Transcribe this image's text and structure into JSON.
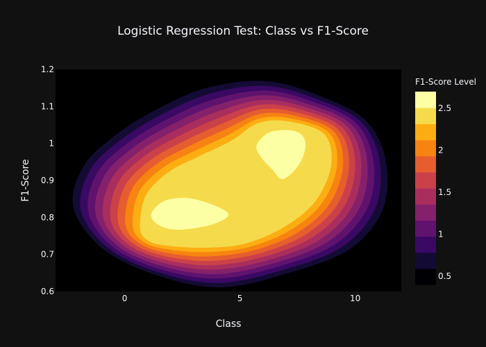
{
  "chart_data": {
    "type": "contour",
    "title": "Logistic Regression Test: Class vs F1-Score",
    "xlabel": "Class",
    "ylabel": "F1-Score",
    "xlim": [
      -3,
      12
    ],
    "ylim": [
      0.6,
      1.2
    ],
    "x_ticks": [
      0,
      5,
      10
    ],
    "y_ticks": [
      0.6,
      0.7,
      0.8,
      0.9,
      1,
      1.1,
      1.2
    ],
    "colorbar": {
      "title": "F1-Score Level",
      "range": [
        0.4,
        2.7
      ],
      "ticks": [
        0.5,
        1,
        1.5,
        2,
        2.5
      ],
      "colorscale": "Inferno",
      "levels": 12
    },
    "peaks": [
      {
        "x": 2.5,
        "y": 0.81,
        "label": "left peak"
      },
      {
        "x": 6.8,
        "y": 0.97,
        "label": "right peak"
      }
    ],
    "colors": {
      "background": "#111111",
      "plot_background": "#000000",
      "text": "#f2f5fa",
      "scale": [
        "#000004",
        "#140b35",
        "#3a0963",
        "#60136e",
        "#85216b",
        "#a92e5e",
        "#cb4149",
        "#e65d2f",
        "#f78311",
        "#fcad12",
        "#f5db4b",
        "#fcffa4"
      ]
    }
  }
}
